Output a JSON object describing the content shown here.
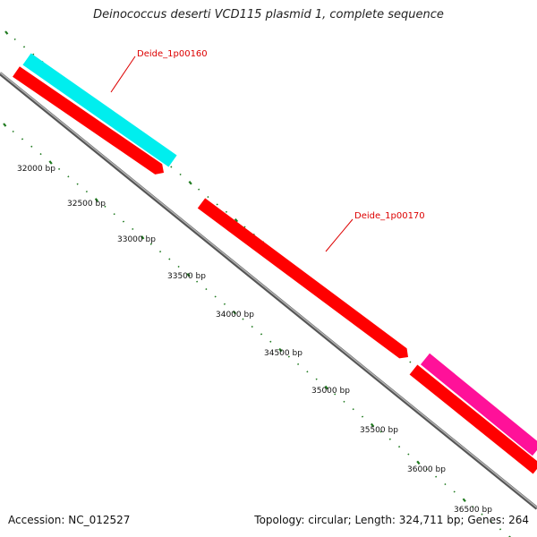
{
  "title": "Deinococcus deserti VCD115 plasmid 1, complete sequence",
  "accession": "Accession: NC_012527",
  "summary": "Topology: circular; Length: 324,711 bp; Genes: 264",
  "colors": {
    "backbone": "#888888",
    "backbone_edge": "#555555",
    "tick": "#1f7a1f",
    "cds": "#ff0000",
    "gene_label": "#dd0000",
    "feature_cyan": "#00eeee",
    "feature_magenta": "#ff1199"
  },
  "ticks": [
    {
      "bp": 32000,
      "label": "32000 bp"
    },
    {
      "bp": 32500,
      "label": "32500 bp"
    },
    {
      "bp": 33000,
      "label": "33000 bp"
    },
    {
      "bp": 33500,
      "label": "33500 bp"
    },
    {
      "bp": 34000,
      "label": "34000 bp"
    },
    {
      "bp": 34500,
      "label": "34500 bp"
    },
    {
      "bp": 35000,
      "label": "35000 bp"
    },
    {
      "bp": 35500,
      "label": "35500 bp"
    },
    {
      "bp": 36000,
      "label": "36000 bp"
    },
    {
      "bp": 36500,
      "label": "36500 bp"
    }
  ],
  "gene_labels": [
    {
      "name": "Deide_1p00160"
    },
    {
      "name": "Deide_1p00170"
    }
  ]
}
